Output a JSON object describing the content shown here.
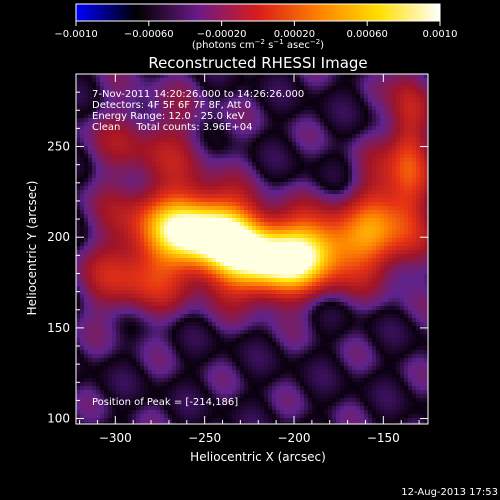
{
  "chart_data": {
    "type": "heatmap",
    "title": "Reconstructed RHESSI Image",
    "xlabel": "Heliocentric X (arcsec)",
    "ylabel": "Heliocentric Y (arcsec)",
    "xlim": [
      -322,
      -125
    ],
    "ylim": [
      97,
      290
    ],
    "xticks": [
      -300,
      -250,
      -200,
      -150
    ],
    "yticks": [
      100,
      150,
      200,
      250
    ],
    "colorbar": {
      "range": [
        -0.001,
        0.001
      ],
      "ticks": [
        -0.001,
        -0.0006,
        -0.0002,
        0.0002,
        0.0006,
        0.001
      ],
      "tick_labels": [
        "−0.0010",
        "−0.00060",
        "−0.00020",
        "0.00020",
        "0.00060",
        "0.0010"
      ],
      "unit_text": "(photons cm",
      "unit_sup1": "−2",
      "unit_mid": " s",
      "unit_sup2": "−1",
      "unit_mid2": " asec",
      "unit_sup3": "−2",
      "unit_end": ")",
      "colormap": [
        "#0000ff",
        "#000000",
        "#6a1a86",
        "#d91c1c",
        "#ff8000",
        "#ffe000",
        "#ffffff"
      ]
    },
    "annotations": [
      "7-Nov-2011 14:20:26.000 to 14:26:26.000",
      "Detectors: 4F 5F 6F 7F 8F, Att 0",
      "Energy Range: 12.0 - 25.0 keV",
      "Clean     Total counts: 3.96E+04"
    ],
    "peak_label": "Position of Peak = [-214,186]",
    "peak": [
      -214,
      186
    ],
    "sources": [
      {
        "x": -214,
        "y": 186,
        "sx": 22,
        "sy": 14,
        "amp": 1.0
      },
      {
        "x": -245,
        "y": 203,
        "sx": 18,
        "sy": 13,
        "amp": 0.8
      },
      {
        "x": -268,
        "y": 205,
        "sx": 22,
        "sy": 16,
        "amp": 0.55
      },
      {
        "x": -180,
        "y": 196,
        "sx": 22,
        "sy": 13,
        "amp": 0.55
      },
      {
        "x": -150,
        "y": 212,
        "sx": 14,
        "sy": 22,
        "amp": 0.4
      },
      {
        "x": -135,
        "y": 250,
        "sx": 8,
        "sy": 35,
        "amp": 0.45
      },
      {
        "x": -290,
        "y": 175,
        "sx": 20,
        "sy": 15,
        "amp": 0.35
      },
      {
        "x": -280,
        "y": 252,
        "sx": 25,
        "sy": 20,
        "amp": 0.25
      }
    ]
  },
  "footer": {
    "timestamp": "12-Aug-2013 17:53"
  }
}
